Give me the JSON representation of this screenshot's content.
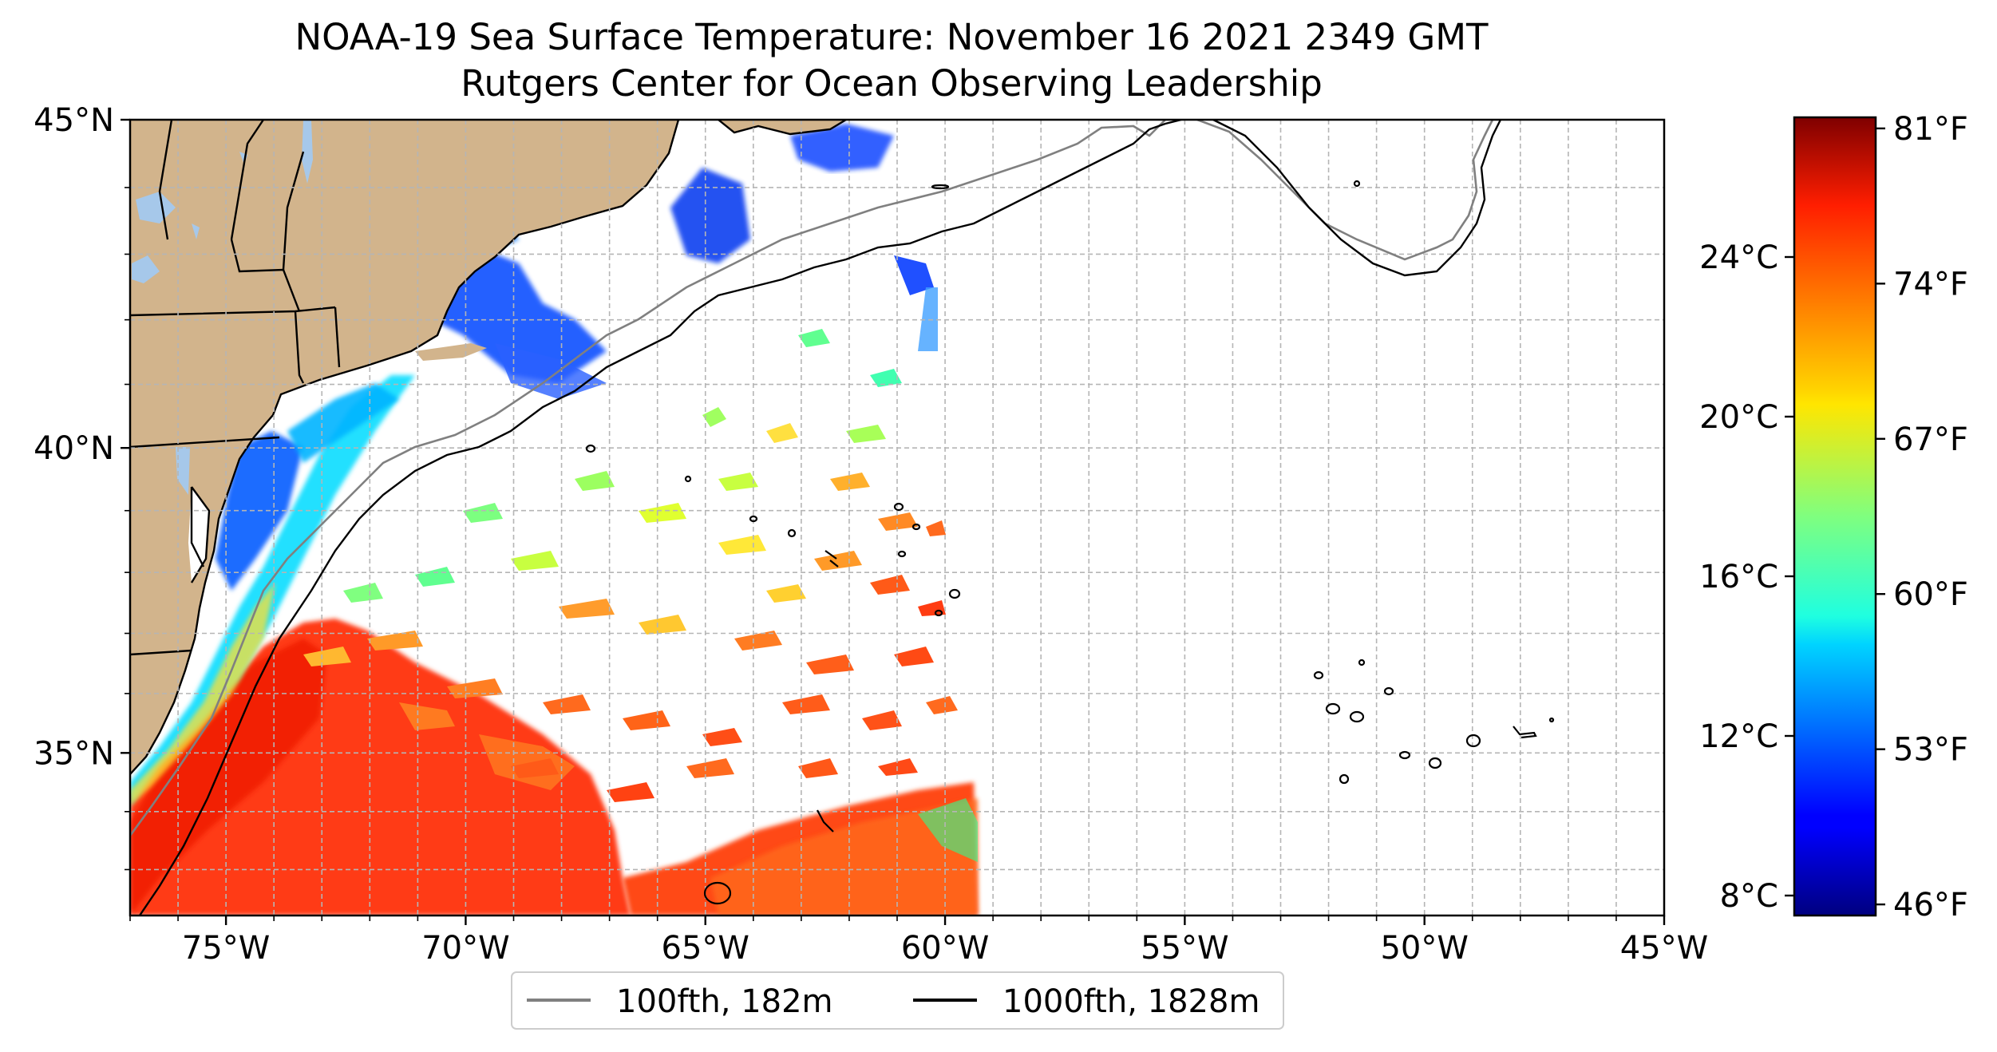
{
  "title": {
    "line1": "NOAA-19 Sea Surface Temperature: November 16 2021 2349 GMT",
    "line2": "Rutgers Center for Ocean Observing Leadership"
  },
  "map": {
    "lon_range": [
      -77,
      -45
    ],
    "lat_range": [
      32.2,
      45
    ],
    "land_color": "#d2b48c",
    "lake_color": "#a6c8ea",
    "gridlines": "dashed, 1 degree",
    "x_ticks": [
      {
        "lon": -75,
        "label": "75°W"
      },
      {
        "lon": -70,
        "label": "70°W"
      },
      {
        "lon": -65,
        "label": "65°W"
      },
      {
        "lon": -60,
        "label": "60°W"
      },
      {
        "lon": -55,
        "label": "55°W"
      },
      {
        "lon": -50,
        "label": "50°W"
      },
      {
        "lon": -45,
        "label": "45°W"
      }
    ],
    "y_ticks": [
      {
        "lat": 45,
        "label": "45°N"
      },
      {
        "lat": 40,
        "label": "40°N"
      },
      {
        "lat": 35,
        "label": "35°N"
      }
    ]
  },
  "legend": {
    "placement": "bottom-center",
    "items": [
      {
        "label": "100fth, 182m",
        "color": "#808080"
      },
      {
        "label": "1000fth, 1828m",
        "color": "#000000"
      }
    ]
  },
  "colorbar": {
    "colormap": "jet",
    "range_f": [
      45.5,
      81.5
    ],
    "celsius_ticks": [
      {
        "value": 24,
        "label": "24°C"
      },
      {
        "value": 20,
        "label": "20°C"
      },
      {
        "value": 16,
        "label": "16°C"
      },
      {
        "value": 12,
        "label": "12°C"
      },
      {
        "value": 8,
        "label": "8°C"
      }
    ],
    "fahrenheit_ticks": [
      {
        "value": 81,
        "label": "81°F"
      },
      {
        "value": 74,
        "label": "74°F"
      },
      {
        "value": 67,
        "label": "67°F"
      },
      {
        "value": 60,
        "label": "60°F"
      },
      {
        "value": 53,
        "label": "53°F"
      },
      {
        "value": 46,
        "label": "46°F"
      }
    ]
  }
}
